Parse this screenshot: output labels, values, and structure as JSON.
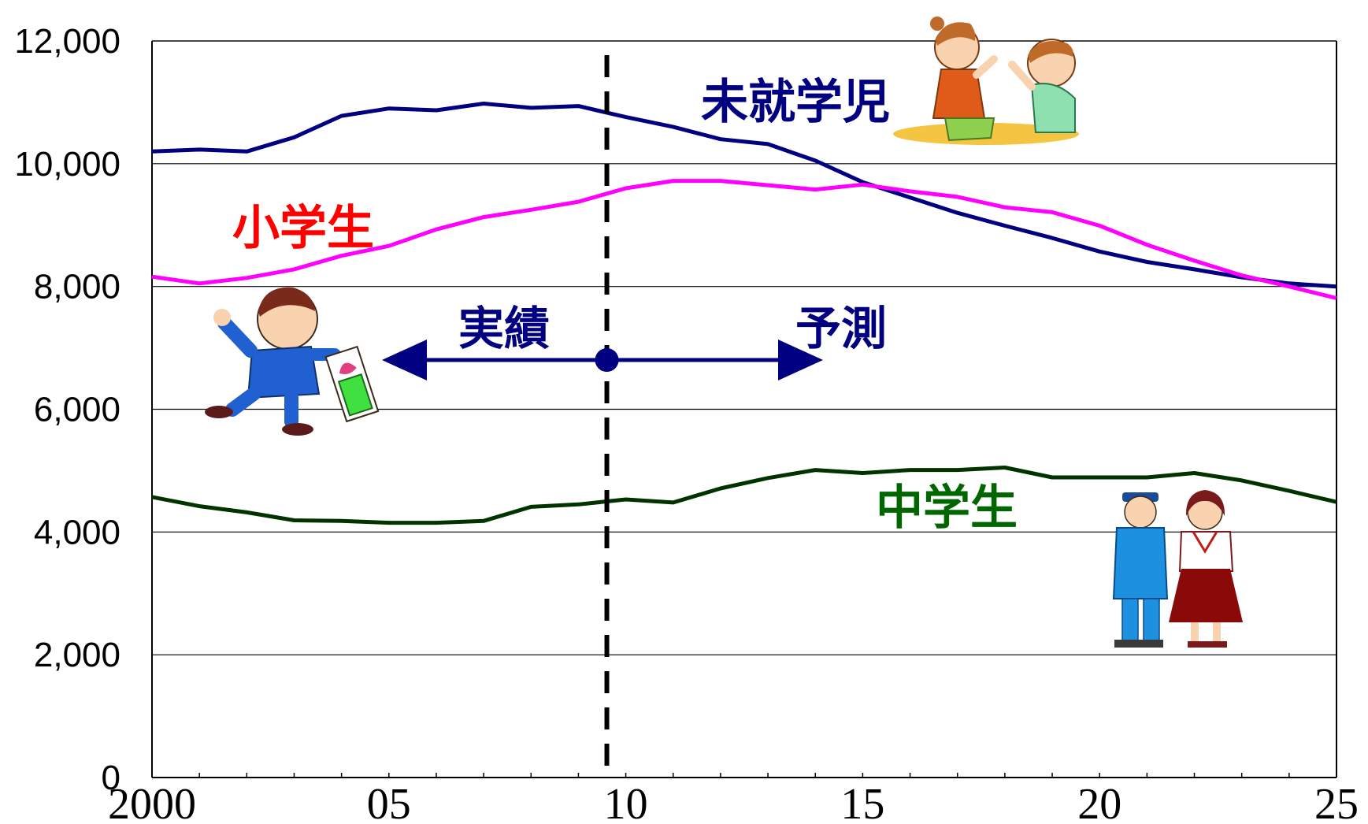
{
  "chart_data": {
    "type": "line",
    "x": [
      2000,
      2001,
      2002,
      2003,
      2004,
      2005,
      2006,
      2007,
      2008,
      2009,
      2010,
      2011,
      2012,
      2013,
      2014,
      2015,
      2016,
      2017,
      2018,
      2019,
      2020,
      2021,
      2022,
      2023,
      2024,
      2025
    ],
    "x_tick_labels": [
      "2000",
      "05",
      "10",
      "15",
      "20",
      "25"
    ],
    "x_tick_values": [
      2000,
      2005,
      2010,
      2015,
      2020,
      2025
    ],
    "xlim": [
      2000,
      2025
    ],
    "ylim": [
      0,
      12000
    ],
    "y_tick_values": [
      0,
      2000,
      4000,
      6000,
      8000,
      10000,
      12000
    ],
    "y_tick_labels": [
      "0",
      "2,000",
      "4,000",
      "6,000",
      "8,000",
      "10,000",
      "12,000"
    ],
    "grid": "horizontal",
    "series": [
      {
        "name": "未就学児",
        "color": "#000080",
        "values": [
          10200,
          10230,
          10200,
          10430,
          10780,
          10900,
          10870,
          10980,
          10910,
          10940,
          10760,
          10600,
          10400,
          10320,
          10050,
          9700,
          9450,
          9200,
          8990,
          8790,
          8570,
          8400,
          8280,
          8150,
          8050,
          8000
        ]
      },
      {
        "name": "小学生",
        "color": "#ff00ff",
        "values": [
          8160,
          8050,
          8140,
          8280,
          8500,
          8660,
          8930,
          9130,
          9250,
          9380,
          9600,
          9720,
          9720,
          9650,
          9580,
          9660,
          9550,
          9460,
          9290,
          9210,
          8990,
          8680,
          8420,
          8180,
          8000,
          7810
        ]
      },
      {
        "name": "中学生",
        "color": "#003300",
        "values": [
          4570,
          4420,
          4320,
          4190,
          4180,
          4150,
          4150,
          4180,
          4410,
          4450,
          4530,
          4480,
          4710,
          4880,
          5010,
          4960,
          5010,
          5010,
          5050,
          4890,
          4890,
          4890,
          4960,
          4840,
          4670,
          4490
        ]
      }
    ],
    "divider_x": 2009.6,
    "period_labels": {
      "actual": "実績",
      "forecast": "予測"
    }
  },
  "colors": {
    "preschool": "#000080",
    "elementary": "#ff00ff",
    "elementary_label": "#ff0000",
    "junior_high": "#003300",
    "junior_high_label": "#006600",
    "arrow": "#000080",
    "grid": "#000000"
  },
  "illustrations": [
    "kids-playing-illustration",
    "schoolboy-illustration",
    "junior-high-students-illustration"
  ]
}
